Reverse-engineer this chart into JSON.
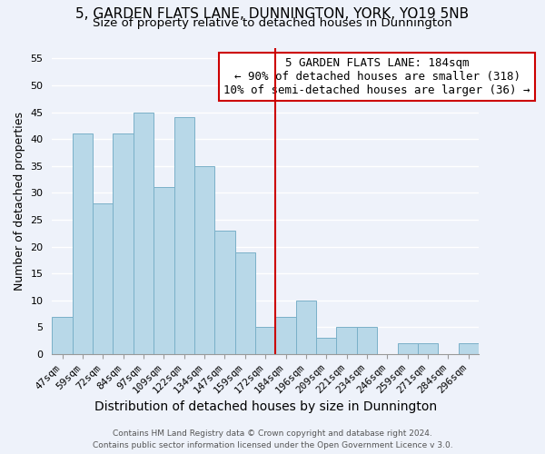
{
  "title": "5, GARDEN FLATS LANE, DUNNINGTON, YORK, YO19 5NB",
  "subtitle": "Size of property relative to detached houses in Dunnington",
  "xlabel": "Distribution of detached houses by size in Dunnington",
  "ylabel": "Number of detached properties",
  "footer_line1": "Contains HM Land Registry data © Crown copyright and database right 2024.",
  "footer_line2": "Contains public sector information licensed under the Open Government Licence v 3.0.",
  "bin_labels": [
    "47sqm",
    "59sqm",
    "72sqm",
    "84sqm",
    "97sqm",
    "109sqm",
    "122sqm",
    "134sqm",
    "147sqm",
    "159sqm",
    "172sqm",
    "184sqm",
    "196sqm",
    "209sqm",
    "221sqm",
    "234sqm",
    "246sqm",
    "259sqm",
    "271sqm",
    "284sqm",
    "296sqm"
  ],
  "bar_values": [
    7,
    41,
    28,
    41,
    45,
    31,
    44,
    35,
    23,
    19,
    5,
    7,
    10,
    3,
    5,
    5,
    0,
    2,
    2,
    0,
    2
  ],
  "bar_color": "#b8d8e8",
  "bar_edge_color": "#7ab0c8",
  "vline_index": 11,
  "vline_color": "#cc0000",
  "annotation_title": "5 GARDEN FLATS LANE: 184sqm",
  "annotation_line1": "← 90% of detached houses are smaller (318)",
  "annotation_line2": "10% of semi-detached houses are larger (36) →",
  "annotation_box_facecolor": "#ffffff",
  "annotation_box_edgecolor": "#cc0000",
  "ylim": [
    0,
    57
  ],
  "yticks": [
    0,
    5,
    10,
    15,
    20,
    25,
    30,
    35,
    40,
    45,
    50,
    55
  ],
  "background_color": "#eef2fa",
  "grid_color": "#ffffff",
  "title_fontsize": 11,
  "subtitle_fontsize": 9.5,
  "xlabel_fontsize": 10,
  "ylabel_fontsize": 9,
  "tick_fontsize": 8,
  "annotation_fontsize": 9,
  "footer_fontsize": 6.5
}
